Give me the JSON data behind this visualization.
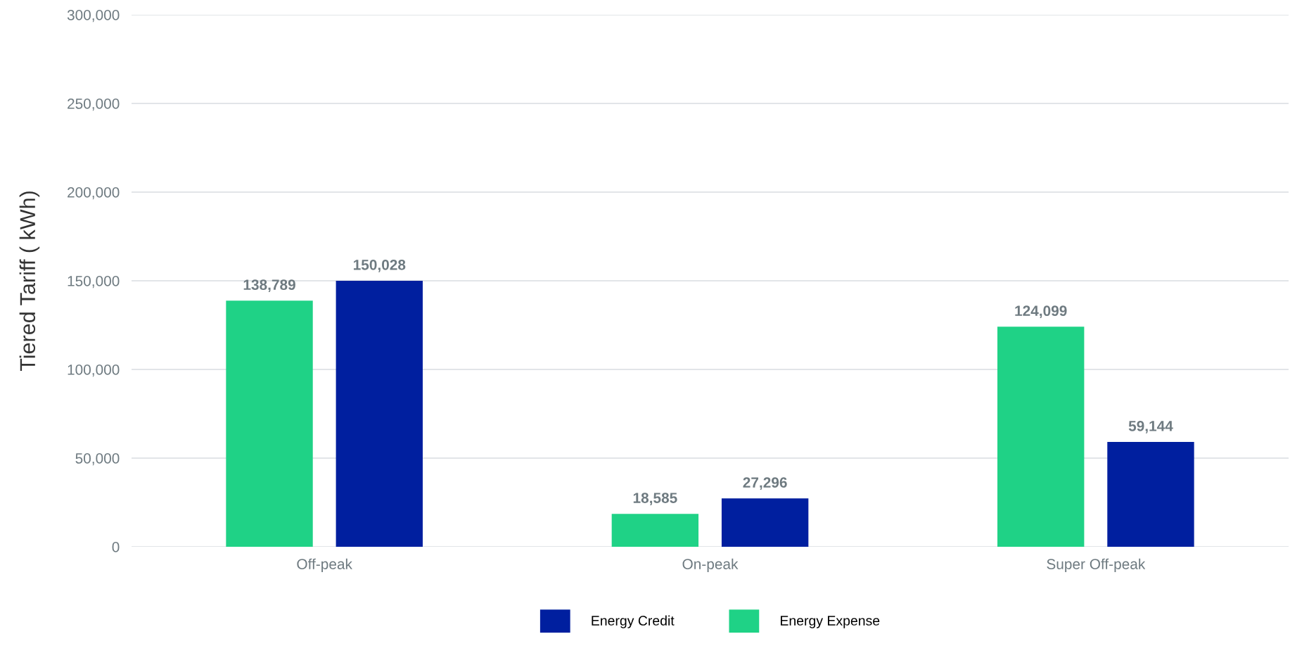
{
  "chart_data": {
    "type": "bar",
    "ylabel": "Tiered Tariff ( kWh)",
    "categories": [
      "Off-peak",
      "On-peak",
      "Super Off-peak"
    ],
    "series": [
      {
        "name": "Energy Expense",
        "color": "#1fd286",
        "values": [
          138789,
          18585,
          124099
        ],
        "value_labels": [
          "138,789",
          "18,585",
          "124,099"
        ]
      },
      {
        "name": "Energy Credit",
        "color": "#001f9f",
        "values": [
          150028,
          27296,
          59144
        ],
        "value_labels": [
          "150,028",
          "27,296",
          "59,144"
        ]
      }
    ],
    "ylim": [
      0,
      300000
    ],
    "yticks": [
      {
        "value": 0,
        "label": "0"
      },
      {
        "value": 50000,
        "label": "50,000"
      },
      {
        "value": 100000,
        "label": "100,000"
      },
      {
        "value": 150000,
        "label": "150,000"
      },
      {
        "value": 200000,
        "label": "200,000"
      },
      {
        "value": 250000,
        "label": "250,000"
      },
      {
        "value": 300000,
        "label": "300,000"
      }
    ],
    "grid": "y",
    "legend": "bottom"
  }
}
